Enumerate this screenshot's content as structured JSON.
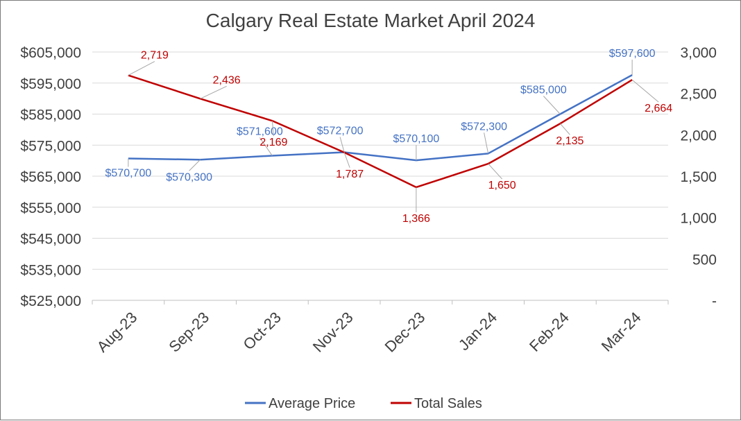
{
  "chart_data": {
    "type": "line",
    "title": "Calgary Real Estate Market April 2024",
    "categories": [
      "Aug-23",
      "Sep-23",
      "Oct-23",
      "Nov-23",
      "Dec-23",
      "Jan-24",
      "Feb-24",
      "Mar-24"
    ],
    "series": [
      {
        "name": "Average Price",
        "axis": "left",
        "color": "#4472c4",
        "values": [
          570700,
          570300,
          571600,
          572700,
          570100,
          572300,
          585000,
          597600
        ],
        "labels": [
          "$570,700",
          "$570,300",
          "$571,600",
          "$572,700",
          "$570,100",
          "$572,300",
          "$585,000",
          "$597,600"
        ]
      },
      {
        "name": "Total Sales",
        "axis": "right",
        "color": "#c00000",
        "values": [
          2719,
          2436,
          2169,
          1787,
          1366,
          1650,
          2135,
          2664
        ],
        "labels": [
          "2,719",
          "2,436",
          "2,169",
          "1,787",
          "1,366",
          "1,650",
          "2,135",
          "2,664"
        ]
      }
    ],
    "y_left": {
      "min": 525000,
      "max": 605000,
      "ticks": [
        605000,
        595000,
        585000,
        575000,
        565000,
        555000,
        545000,
        535000,
        525000
      ],
      "tick_labels": [
        "$605,000",
        "$595,000",
        "$585,000",
        "$575,000",
        "$565,000",
        "$555,000",
        "$545,000",
        "$535,000",
        "$525,000"
      ]
    },
    "y_right": {
      "min": 0,
      "max": 3000,
      "ticks": [
        3000,
        2500,
        2000,
        1500,
        1000,
        500,
        0
      ],
      "tick_labels": [
        "3,000",
        "2,500",
        "2,000",
        "1,500",
        "1,000",
        "500",
        "-"
      ]
    },
    "grid": true,
    "legend_position": "bottom"
  }
}
